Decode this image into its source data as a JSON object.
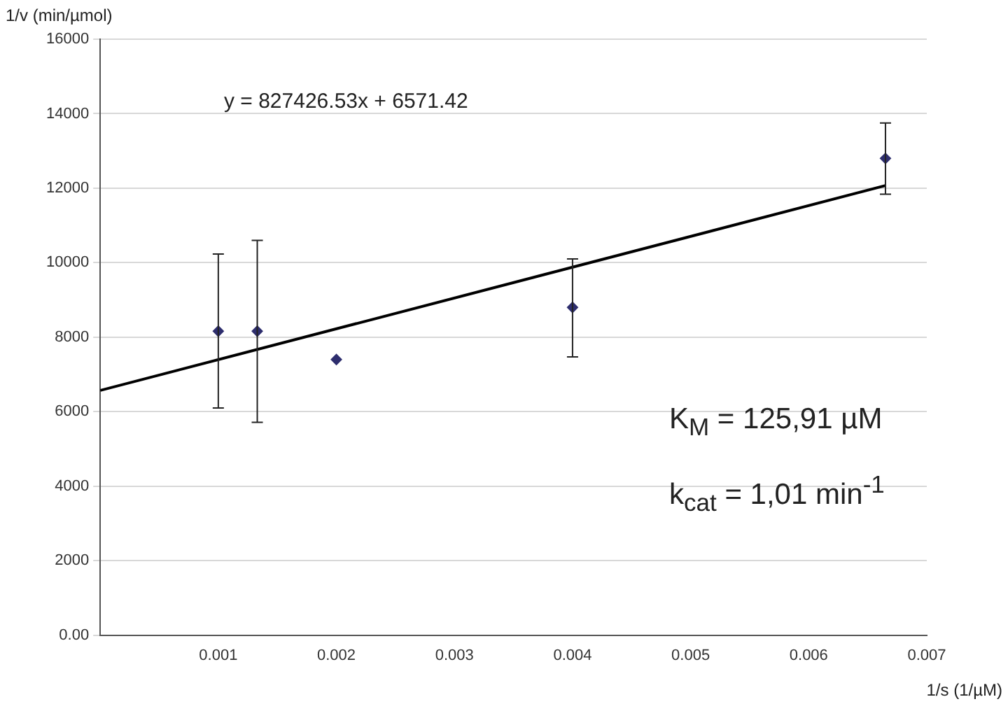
{
  "chart_data": {
    "type": "scatter",
    "xlabel": "1/s (1/µM)",
    "ylabel": "1/v (min/µmol)",
    "annotations": [
      "y = 827426.53x + 6571.42",
      "K$_{M}$  = 125,91 µM",
      "k$_{cat}$ = 1,01 min$^{-1}$"
    ],
    "series": [
      {
        "type": "scatter",
        "color": "#2e2e6e",
        "marker": "diamond",
        "x": [
          0.001,
          0.00133,
          0.002,
          0.004,
          0.00665
        ],
        "values": [
          8160,
          8160,
          7400,
          8800,
          12800
        ],
        "errors": [
          [
            6100,
            10230
          ],
          [
            5715,
            10600
          ],
          null,
          [
            7470,
            10100
          ],
          [
            11840,
            13750
          ]
        ]
      },
      {
        "type": "line",
        "color": "#000000",
        "marker": "none",
        "line_style": "solid",
        "x": [
          0,
          0.00665
        ],
        "values": [
          6570,
          12070
        ]
      }
    ],
    "xlim": [
      0,
      0.007
    ],
    "xticks": [
      0.001,
      0.002,
      0.003,
      0.004,
      0.005,
      0.006,
      0.007
    ],
    "ylim": [
      0,
      16000
    ],
    "yticks": [
      {
        "value": 0,
        "label": "0.00"
      },
      2000,
      4000,
      6000,
      8000,
      10000,
      12000,
      14000,
      16000
    ],
    "grid": "y",
    "legend": false
  }
}
